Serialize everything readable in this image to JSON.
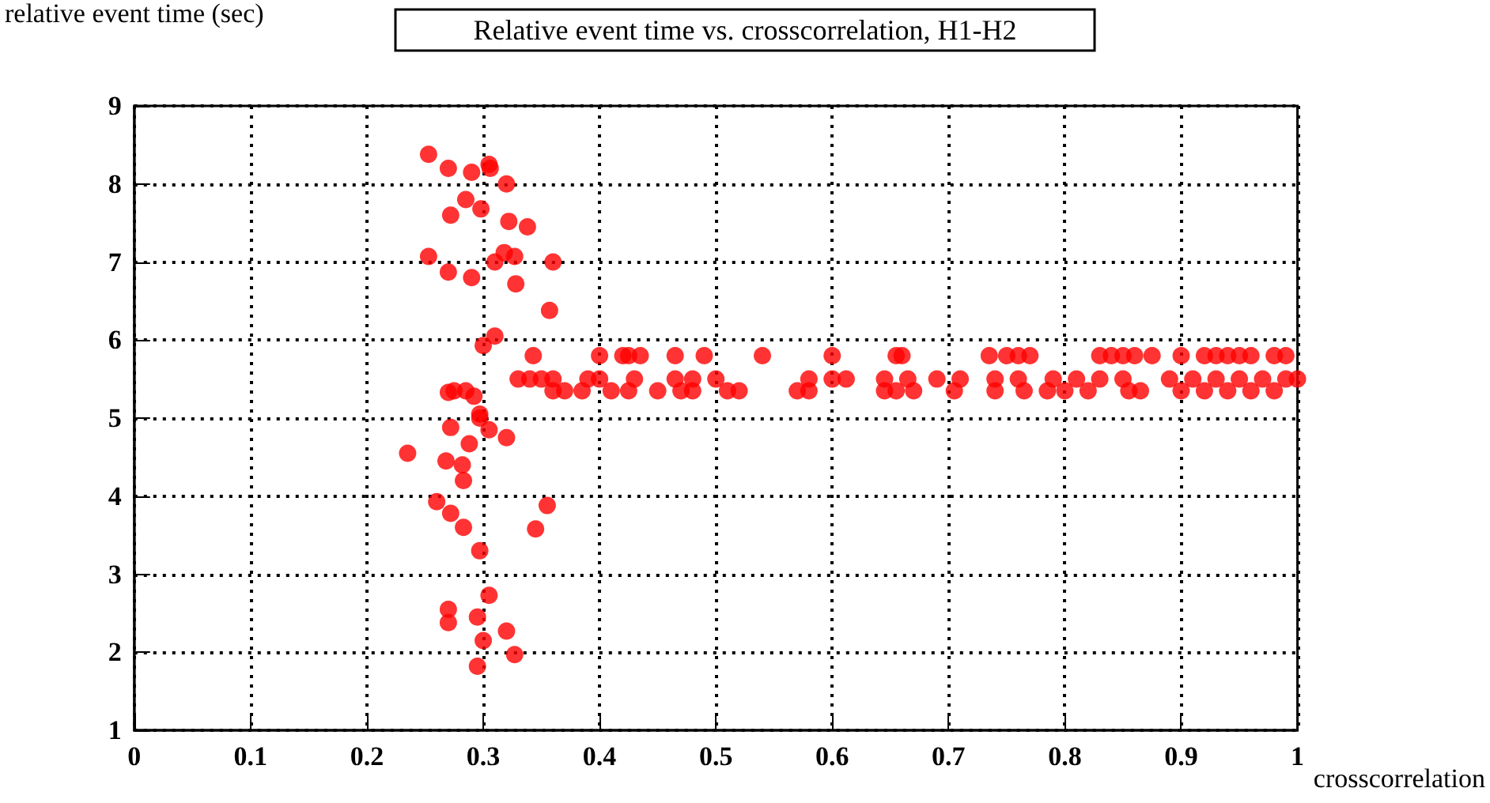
{
  "chart_data": {
    "type": "scatter",
    "title": "Relative event time vs. crosscorrelation, H1-H2",
    "xlabel": "crosscorrelation",
    "ylabel": "relative event time (sec)",
    "x": [
      0.253,
      0.27,
      0.29,
      0.305,
      0.306,
      0.32,
      0.285,
      0.298,
      0.272,
      0.322,
      0.338,
      0.253,
      0.27,
      0.29,
      0.31,
      0.318,
      0.327,
      0.36,
      0.328,
      0.357,
      0.31,
      0.3,
      0.275,
      0.285,
      0.292,
      0.27,
      0.297,
      0.297,
      0.305,
      0.272,
      0.288,
      0.32,
      0.235,
      0.268,
      0.282,
      0.283,
      0.26,
      0.272,
      0.283,
      0.345,
      0.355,
      0.297,
      0.305,
      0.27,
      0.27,
      0.295,
      0.32,
      0.3,
      0.327,
      0.295,
      0.343,
      0.4,
      0.42,
      0.425,
      0.435,
      0.465,
      0.49,
      0.54,
      0.6,
      0.655,
      0.66,
      0.735,
      0.75,
      0.76,
      0.77,
      0.83,
      0.84,
      0.85,
      0.86,
      0.875,
      0.9,
      0.92,
      0.93,
      0.94,
      0.95,
      0.96,
      0.98,
      0.99,
      0.33,
      0.34,
      0.35,
      0.36,
      0.39,
      0.4,
      0.43,
      0.465,
      0.48,
      0.5,
      0.58,
      0.6,
      0.612,
      0.645,
      0.665,
      0.69,
      0.71,
      0.74,
      0.76,
      0.79,
      0.81,
      0.83,
      0.85,
      0.89,
      0.91,
      0.93,
      0.95,
      0.97,
      0.99,
      1.0,
      0.36,
      0.37,
      0.385,
      0.41,
      0.425,
      0.45,
      0.47,
      0.48,
      0.51,
      0.52,
      0.57,
      0.58,
      0.645,
      0.655,
      0.67,
      0.705,
      0.74,
      0.765,
      0.785,
      0.8,
      0.82,
      0.855,
      0.865,
      0.9,
      0.92,
      0.94,
      0.96,
      0.98
    ],
    "values": [
      8.38,
      8.2,
      8.15,
      8.25,
      8.2,
      8.0,
      7.8,
      7.68,
      7.6,
      7.52,
      7.45,
      7.07,
      6.87,
      6.8,
      7.0,
      7.12,
      7.07,
      7.0,
      6.72,
      6.38,
      6.05,
      5.93,
      5.35,
      5.35,
      5.28,
      5.33,
      5.05,
      5.0,
      4.85,
      4.88,
      4.67,
      4.75,
      4.55,
      4.45,
      4.4,
      4.2,
      3.93,
      3.78,
      3.6,
      3.58,
      3.88,
      3.3,
      2.73,
      2.55,
      2.38,
      2.45,
      2.27,
      2.15,
      1.97,
      1.82,
      5.8,
      5.8,
      5.8,
      5.8,
      5.8,
      5.8,
      5.8,
      5.8,
      5.8,
      5.8,
      5.8,
      5.8,
      5.8,
      5.8,
      5.8,
      5.8,
      5.8,
      5.8,
      5.8,
      5.8,
      5.8,
      5.8,
      5.8,
      5.8,
      5.8,
      5.8,
      5.8,
      5.8,
      5.5,
      5.5,
      5.5,
      5.5,
      5.5,
      5.5,
      5.5,
      5.5,
      5.5,
      5.5,
      5.5,
      5.5,
      5.5,
      5.5,
      5.5,
      5.5,
      5.5,
      5.5,
      5.5,
      5.5,
      5.5,
      5.5,
      5.5,
      5.5,
      5.5,
      5.5,
      5.5,
      5.5,
      5.5,
      5.5,
      5.35,
      5.35,
      5.35,
      5.35,
      5.35,
      5.35,
      5.35,
      5.35,
      5.35,
      5.35,
      5.35,
      5.35,
      5.35,
      5.35,
      5.35,
      5.35,
      5.35,
      5.35,
      5.35,
      5.35,
      5.35,
      5.35,
      5.35,
      5.35,
      5.35,
      5.35,
      5.35,
      5.35
    ],
    "color": "#ff0000",
    "marker": "circle",
    "grid": true,
    "xlim": [
      0,
      1
    ],
    "xticks": [
      0,
      0.1,
      0.2,
      0.3,
      0.4,
      0.5,
      0.6,
      0.7,
      0.8,
      0.9,
      1
    ],
    "ylim": [
      1,
      9
    ],
    "yticks": [
      1,
      2,
      3,
      4,
      5,
      6,
      7,
      8,
      9
    ]
  }
}
